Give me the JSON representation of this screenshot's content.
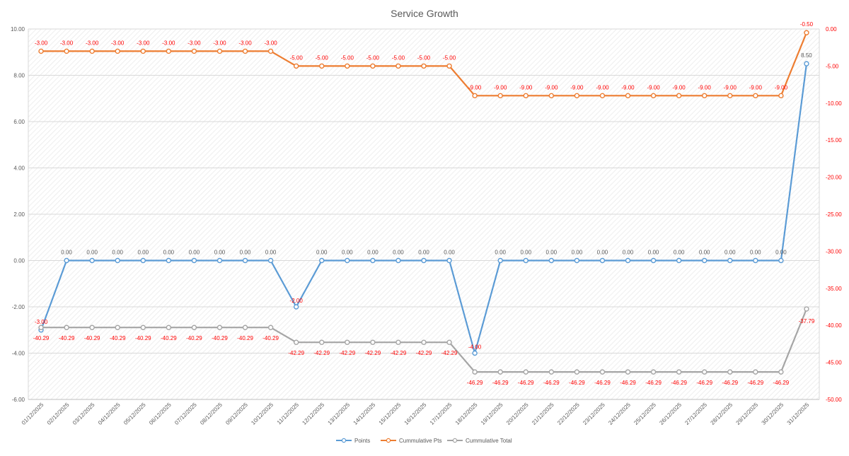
{
  "chart_data": {
    "type": "line",
    "title": "Service Growth",
    "categories": [
      "01/12/2025",
      "02/12/2025",
      "03/12/2025",
      "04/12/2025",
      "05/12/2025",
      "06/12/2025",
      "07/12/2025",
      "08/12/2025",
      "09/12/2025",
      "10/12/2025",
      "11/12/2025",
      "12/12/2025",
      "13/12/2025",
      "14/12/2025",
      "15/12/2025",
      "16/12/2025",
      "17/12/2025",
      "18/12/2025",
      "19/12/2025",
      "20/12/2025",
      "21/12/2025",
      "22/12/2025",
      "23/12/2025",
      "24/12/2025",
      "25/12/2025",
      "26/12/2025",
      "27/12/2025",
      "28/12/2025",
      "29/12/2025",
      "30/12/2025",
      "31/12/2025"
    ],
    "y_left": {
      "min": -6,
      "max": 10,
      "step": 2,
      "tick_labels": [
        "10.00",
        "8.00",
        "6.00",
        "4.00",
        "2.00",
        "0.00",
        "-2.00",
        "-4.00",
        "-6.00"
      ]
    },
    "y_right": {
      "min": -50,
      "max": 0,
      "step": 5,
      "tick_labels": [
        "0.00",
        "-5.00",
        "-10.00",
        "-15.00",
        "-20.00",
        "-25.00",
        "-30.00",
        "-35.00",
        "-40.00",
        "-45.00",
        "-50.00"
      ]
    },
    "grid": true,
    "legend_position": "bottom",
    "series": [
      {
        "name": "Points",
        "axis": "left",
        "color": "#5b9bd5",
        "label_color": "#595959",
        "values": [
          -3,
          0,
          0,
          0,
          0,
          0,
          0,
          0,
          0,
          0,
          -2,
          0,
          0,
          0,
          0,
          0,
          0,
          -4,
          0,
          0,
          0,
          0,
          0,
          0,
          0,
          0,
          0,
          0,
          0,
          0,
          8.5
        ],
        "labels": [
          "-3.00",
          "0.00",
          "0.00",
          "0.00",
          "0.00",
          "0.00",
          "0.00",
          "0.00",
          "0.00",
          "0.00",
          "-2.00",
          "0.00",
          "0.00",
          "0.00",
          "0.00",
          "0.00",
          "0.00",
          "-4.00",
          "0.00",
          "0.00",
          "0.00",
          "0.00",
          "0.00",
          "0.00",
          "0.00",
          "0.00",
          "0.00",
          "0.00",
          "0.00",
          "0.00",
          "8.50"
        ],
        "label_colors": [
          "#ff0000",
          "",
          "",
          "",
          "",
          "",
          "",
          "",
          "",
          "",
          "#ff0000",
          "",
          "",
          "",
          "",
          "",
          "",
          "#ff0000",
          "",
          "",
          "",
          "",
          "",
          "",
          "",
          "",
          "",
          "",
          "",
          "",
          ""
        ]
      },
      {
        "name": "Cummulative Pts",
        "axis": "right",
        "color": "#ed7d31",
        "label_color": "#ff0000",
        "values": [
          -3,
          -3,
          -3,
          -3,
          -3,
          -3,
          -3,
          -3,
          -3,
          -3,
          -5,
          -5,
          -5,
          -5,
          -5,
          -5,
          -5,
          -9,
          -9,
          -9,
          -9,
          -9,
          -9,
          -9,
          -9,
          -9,
          -9,
          -9,
          -9,
          -9,
          -0.5
        ],
        "labels": [
          "-3.00",
          "-3.00",
          "-3.00",
          "-3.00",
          "-3.00",
          "-3.00",
          "-3.00",
          "-3.00",
          "-3.00",
          "-3.00",
          "-5.00",
          "-5.00",
          "-5.00",
          "-5.00",
          "-5.00",
          "-5.00",
          "-5.00",
          "-9.00",
          "-9.00",
          "-9.00",
          "-9.00",
          "-9.00",
          "-9.00",
          "-9.00",
          "-9.00",
          "-9.00",
          "-9.00",
          "-9.00",
          "-9.00",
          "-9.00",
          "-0.50"
        ]
      },
      {
        "name": "Cummulative Total",
        "axis": "right",
        "color": "#a5a5a5",
        "label_color": "#ff0000",
        "values": [
          -40.29,
          -40.29,
          -40.29,
          -40.29,
          -40.29,
          -40.29,
          -40.29,
          -40.29,
          -40.29,
          -40.29,
          -42.29,
          -42.29,
          -42.29,
          -42.29,
          -42.29,
          -42.29,
          -42.29,
          -46.29,
          -46.29,
          -46.29,
          -46.29,
          -46.29,
          -46.29,
          -46.29,
          -46.29,
          -46.29,
          -46.29,
          -46.29,
          -46.29,
          -46.29,
          -37.79
        ],
        "labels": [
          "-40.29",
          "-40.29",
          "-40.29",
          "-40.29",
          "-40.29",
          "-40.29",
          "-40.29",
          "-40.29",
          "-40.29",
          "-40.29",
          "-42.29",
          "-42.29",
          "-42.29",
          "-42.29",
          "-42.29",
          "-42.29",
          "-42.29",
          "-46.29",
          "-46.29",
          "-46.29",
          "-46.29",
          "-46.29",
          "-46.29",
          "-46.29",
          "-46.29",
          "-46.29",
          "-46.29",
          "-46.29",
          "-46.29",
          "-46.29",
          "-37.79"
        ]
      }
    ]
  }
}
